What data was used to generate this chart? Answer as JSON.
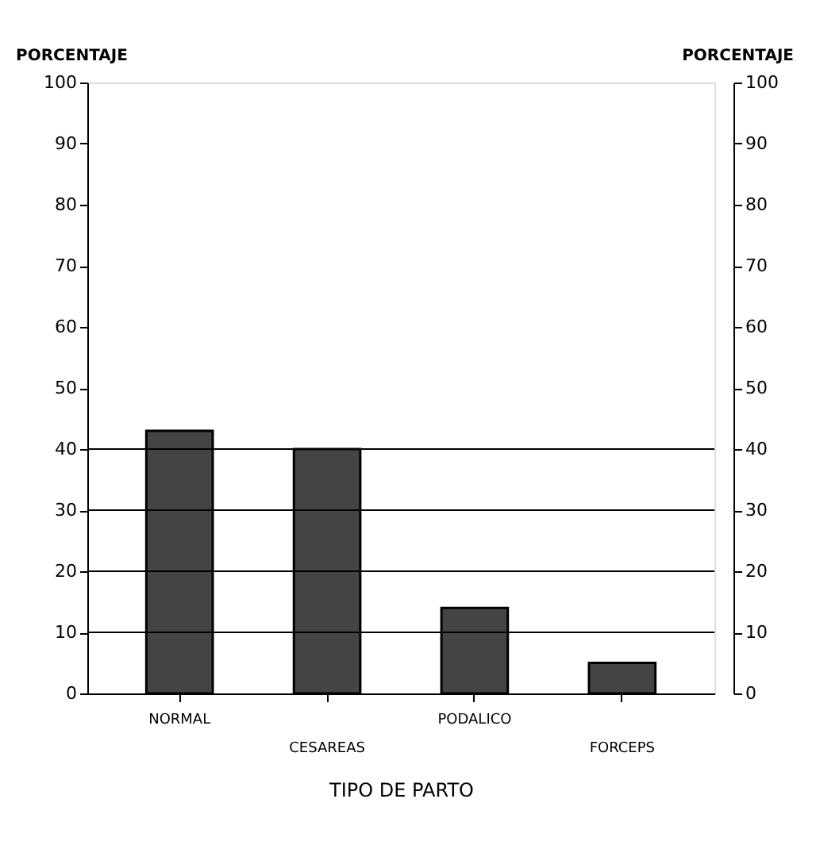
{
  "chart_data": {
    "type": "bar",
    "xlabel": "TIPO DE PARTO",
    "ylabel": "PORCENTAJE",
    "y2label": "PORCENTAJE",
    "categories": [
      "NORMAL",
      "CESAREAS",
      "PODALICO",
      "FORCEPS"
    ],
    "values": [
      43,
      40,
      14,
      5
    ],
    "color": "#444444",
    "ylim": [
      0,
      100
    ],
    "yticks": [
      0,
      10,
      20,
      30,
      40,
      50,
      60,
      70,
      80,
      90,
      100
    ],
    "y2lim": [
      0,
      100
    ],
    "y2ticks": [
      0,
      10,
      20,
      30,
      40,
      50,
      60,
      70,
      80,
      90,
      100
    ],
    "ref_lines": [
      {
        "axis": "y",
        "value": 10
      },
      {
        "axis": "y",
        "value": 20
      },
      {
        "axis": "y",
        "value": 30
      },
      {
        "axis": "y",
        "value": 40
      }
    ],
    "grid": false
  }
}
